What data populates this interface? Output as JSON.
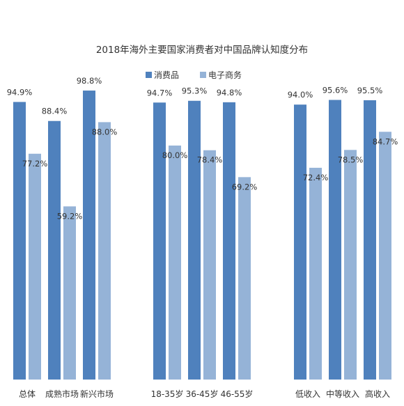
{
  "chart_data": {
    "type": "bar",
    "title": "2018年海外主要国家消费者对中国品牌认知度分布",
    "legend_position": "top-center",
    "grid": false,
    "ylim": [
      0,
      100
    ],
    "series": [
      {
        "name": "消费品",
        "color": "#4f81bd"
      },
      {
        "name": "电子商务",
        "color": "#95b3d7"
      }
    ],
    "groups": [
      {
        "categories": [
          "总体",
          "成熟市场",
          "新兴市场"
        ],
        "values": [
          [
            94.9,
            77.2
          ],
          [
            88.4,
            59.2
          ],
          [
            98.8,
            88.0
          ]
        ],
        "labels": [
          [
            "94.9%",
            "77.2%"
          ],
          [
            "88.4%",
            "59.2%"
          ],
          [
            "98.8%",
            "88.0%"
          ]
        ]
      },
      {
        "categories": [
          "18-35岁",
          "36-45岁",
          "46-55岁"
        ],
        "values": [
          [
            94.7,
            80.0
          ],
          [
            95.3,
            78.4
          ],
          [
            94.8,
            69.2
          ]
        ],
        "labels": [
          [
            "94.7%",
            "80.0%"
          ],
          [
            "95.3%",
            "78.4%"
          ],
          [
            "94.8%",
            "69.2%"
          ]
        ]
      },
      {
        "categories": [
          "低收入",
          "中等收入",
          "高收入"
        ],
        "values": [
          [
            94.0,
            72.4
          ],
          [
            95.6,
            78.5
          ],
          [
            95.5,
            84.7
          ]
        ],
        "labels": [
          [
            "94.0%",
            "72.4%"
          ],
          [
            "95.6%",
            "78.5%"
          ],
          [
            "95.5%",
            "84.7%"
          ]
        ]
      }
    ]
  }
}
